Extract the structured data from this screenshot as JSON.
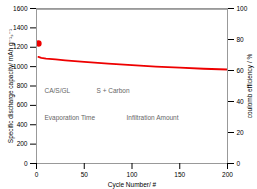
{
  "chart_data": {
    "type": "line",
    "xlabel": "Cycle Number/ #",
    "ylabel": "Specific discharge capacity/ mAh g⁻¹ₛ⁻¹",
    "y2label": "coulomb efficiency / %",
    "xlim": [
      0,
      200
    ],
    "xticks": [
      0,
      50,
      100,
      150,
      200
    ],
    "ylim": [
      0,
      1600
    ],
    "yticks": [
      0,
      200,
      400,
      600,
      800,
      1000,
      1200,
      1400,
      1600
    ],
    "y2lim": [
      0,
      100
    ],
    "y2ticks": [
      0,
      20,
      40,
      60,
      80,
      100
    ],
    "series": [
      {
        "type": "line",
        "color": "#ee0000",
        "x": [
          2,
          5,
          10,
          20,
          30,
          50,
          75,
          100,
          125,
          150,
          175,
          200
        ],
        "values": [
          1100,
          1090,
          1083,
          1075,
          1065,
          1048,
          1030,
          1015,
          1000,
          990,
          978,
          970
        ]
      },
      {
        "type": "line",
        "color": "#555555",
        "axis": "y2",
        "x": [
          0,
          200
        ],
        "values": [
          99.8,
          99.8
        ]
      },
      {
        "type": "scatter",
        "marker": "o",
        "color": "#ee0000",
        "x": [
          2
        ],
        "values": [
          1240
        ]
      }
    ],
    "annotations": [
      "CA/S/GL",
      "S + Carbon",
      "Evaporation Time",
      "Infiltration Amount"
    ]
  }
}
